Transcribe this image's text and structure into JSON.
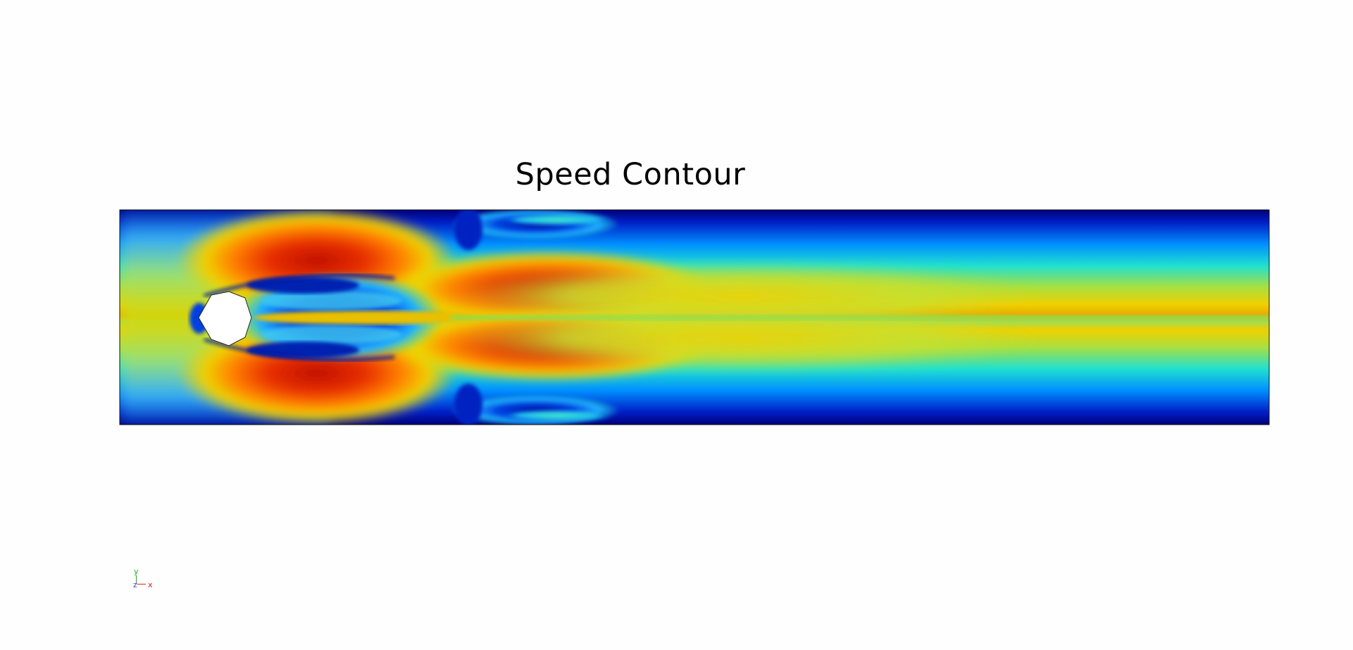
{
  "plot": {
    "title": "Speed Contour",
    "colormap": "jet",
    "colors": {
      "background": "#fefefe",
      "obstacle": "#ffffff"
    }
  },
  "axes_triad": {
    "x_label": "x",
    "y_label": "y",
    "z_label": "z",
    "x_color": "#e02020",
    "y_color": "#2e9e2e",
    "z_color": "#2b3fd1"
  }
}
